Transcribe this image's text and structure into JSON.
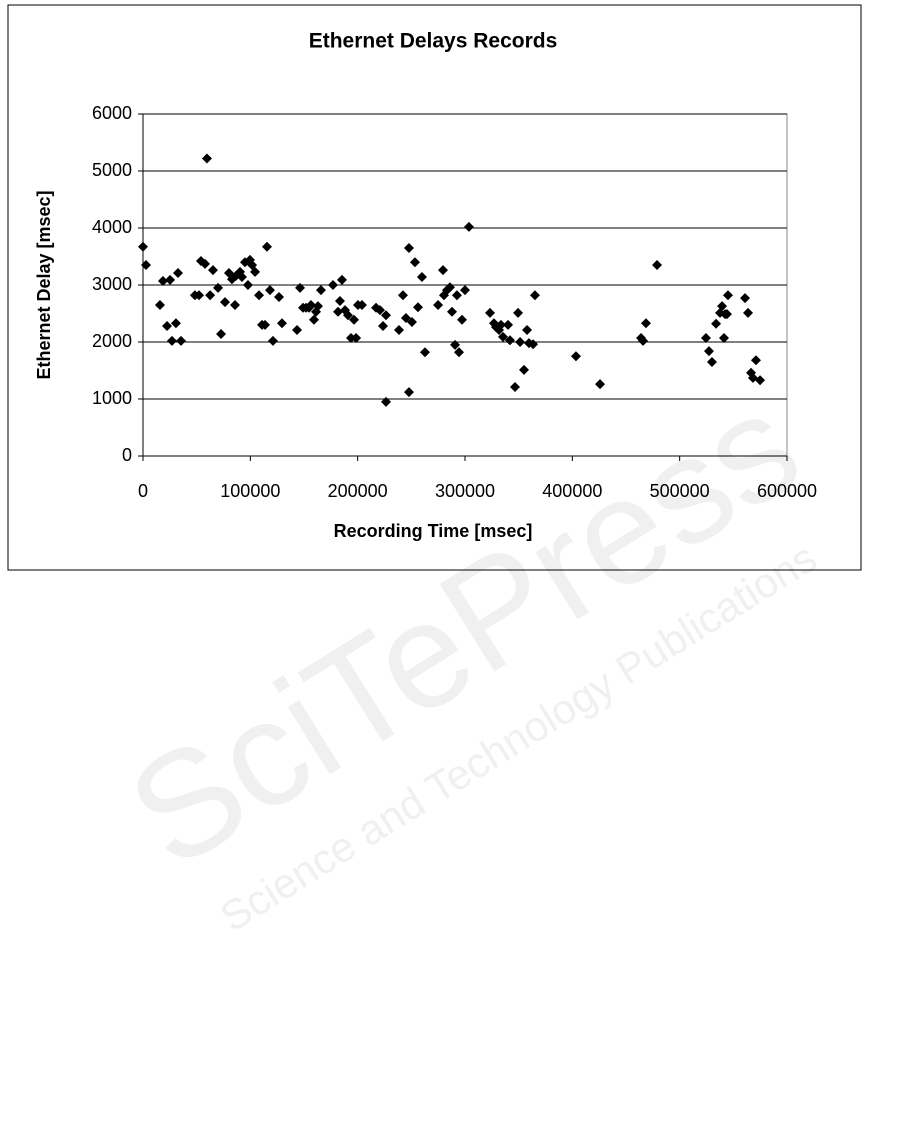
{
  "chart_data": {
    "type": "scatter",
    "title": "Ethernet Delays Records",
    "xlabel": "Recording Time [msec]",
    "ylabel": "Ethernet Delay [msec]",
    "xlim": [
      0,
      600000
    ],
    "xticks": [
      0,
      100000,
      200000,
      300000,
      400000,
      500000,
      600000
    ],
    "ylim": [
      0,
      6000
    ],
    "yticks": [
      0,
      1000,
      2000,
      3000,
      4000,
      5000,
      6000
    ],
    "grid": true,
    "marker": "diamond",
    "color": "#000000",
    "x": [
      0,
      2800,
      15800,
      18600,
      22400,
      25200,
      27000,
      30700,
      32600,
      35400,
      48400,
      52200,
      54000,
      57800,
      59600,
      62500,
      65200,
      69900,
      72700,
      76400,
      80100,
      82900,
      85700,
      86600,
      90400,
      92200,
      95000,
      97800,
      99700,
      101600,
      104400,
      108100,
      110900,
      113700,
      115500,
      118300,
      121100,
      126700,
      129500,
      143500,
      146300,
      149100,
      151900,
      154700,
      156500,
      159300,
      161200,
      163000,
      165800,
      177000,
      181700,
      183500,
      185400,
      188200,
      191000,
      193800,
      196600,
      198500,
      200300,
      204000,
      217100,
      220800,
      223600,
      226400,
      226400,
      238500,
      242200,
      245000,
      247800,
      247800,
      250600,
      253400,
      256200,
      259900,
      262700,
      274900,
      279500,
      280400,
      283200,
      286000,
      287900,
      290700,
      292500,
      294400,
      297200,
      300000,
      303700,
      323300,
      327000,
      328900,
      331700,
      333500,
      335400,
      340100,
      341900,
      346600,
      349400,
      351300,
      355000,
      357800,
      359600,
      363400,
      365200,
      403400,
      425800,
      464000,
      465900,
      468600,
      478900,
      524500,
      527300,
      530100,
      533900,
      537600,
      539500,
      542300,
      541300,
      545000,
      544100,
      560900,
      563700,
      566500,
      568300,
      571100,
      574900
    ],
    "values": [
      3670,
      3350,
      2650,
      3070,
      2280,
      3090,
      2020,
      2330,
      3210,
      2020,
      2820,
      2820,
      3420,
      3370,
      5220,
      2820,
      3260,
      2950,
      2140,
      2700,
      3210,
      3100,
      2650,
      3160,
      3230,
      3140,
      3400,
      3000,
      3440,
      3350,
      3230,
      2820,
      2300,
      2300,
      3670,
      2910,
      2020,
      2790,
      2330,
      2210,
      2950,
      2600,
      2600,
      2600,
      2650,
      2390,
      2530,
      2630,
      2910,
      3000,
      2530,
      2720,
      3090,
      2560,
      2470,
      2070,
      2390,
      2070,
      2650,
      2650,
      2600,
      2560,
      2280,
      2470,
      950,
      2210,
      2820,
      2420,
      3650,
      1120,
      2350,
      3400,
      2610,
      3140,
      1820,
      2650,
      3260,
      2820,
      2910,
      2960,
      2530,
      1950,
      2820,
      1820,
      2390,
      2910,
      4020,
      2510,
      2330,
      2260,
      2210,
      2300,
      2090,
      2300,
      2030,
      1210,
      2510,
      2000,
      1510,
      2210,
      1980,
      1960,
      2820,
      1750,
      1260,
      2070,
      2020,
      2330,
      3350,
      2070,
      1840,
      1650,
      2320,
      2510,
      2630,
      2490,
      2070,
      2820,
      2490,
      2770,
      2510,
      1460,
      1370,
      1680,
      1330
    ]
  },
  "watermark": {
    "logo": "SciTePress",
    "tagline": "Science and Technology Publications"
  }
}
